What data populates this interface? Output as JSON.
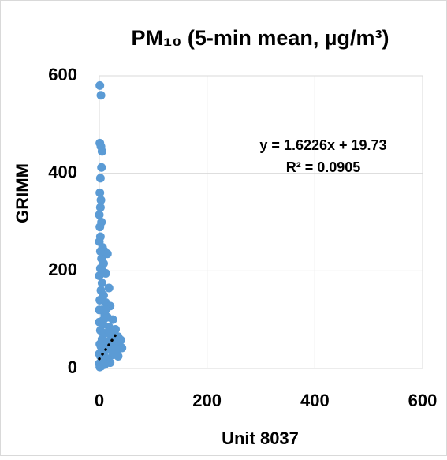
{
  "chart_data": {
    "type": "scatter",
    "title": "PM₁₀ (5-min mean, µg/m³)",
    "x_label": "Unit 8037",
    "y_label": "GRIMM",
    "annotations": [
      "y = 1.6226x + 19.73",
      "R² = 0.0905"
    ],
    "color": "#5b9bd5",
    "trendline": {
      "x": [
        0,
        35
      ],
      "y": [
        19.73,
        76.5
      ],
      "color": "#000000"
    },
    "x": [
      1,
      3,
      1,
      3,
      5,
      4,
      2,
      1,
      3,
      2,
      0,
      4,
      1,
      2,
      0,
      6,
      10,
      15,
      4,
      8,
      2,
      12,
      0,
      5,
      18,
      3,
      8,
      1,
      12,
      20,
      4,
      10,
      15,
      25,
      0,
      6,
      18,
      30,
      2,
      10,
      22,
      35,
      40,
      5,
      15,
      28,
      38,
      3,
      12,
      20,
      32,
      42,
      8,
      25,
      35,
      2,
      15,
      6,
      0,
      10,
      20,
      1,
      4,
      30,
      25,
      18,
      8,
      12,
      6,
      2,
      0,
      1,
      0
    ],
    "values": [
      580,
      560,
      462,
      455,
      445,
      412,
      390,
      360,
      345,
      330,
      315,
      300,
      290,
      270,
      260,
      248,
      240,
      235,
      225,
      215,
      205,
      195,
      190,
      175,
      165,
      160,
      150,
      140,
      135,
      128,
      120,
      110,
      105,
      100,
      95,
      90,
      85,
      80,
      78,
      72,
      68,
      65,
      58,
      60,
      55,
      50,
      45,
      45,
      40,
      38,
      35,
      42,
      30,
      28,
      25,
      25,
      20,
      15,
      10,
      8,
      12,
      3,
      5,
      40,
      60,
      75,
      100,
      120,
      200,
      240,
      120,
      50,
      30
    ],
    "xlim": [
      0,
      600
    ],
    "ylim": [
      0,
      600
    ],
    "xticks": [
      0,
      200,
      400,
      600
    ],
    "yticks": [
      0,
      200,
      400,
      600
    ],
    "grid": true
  }
}
